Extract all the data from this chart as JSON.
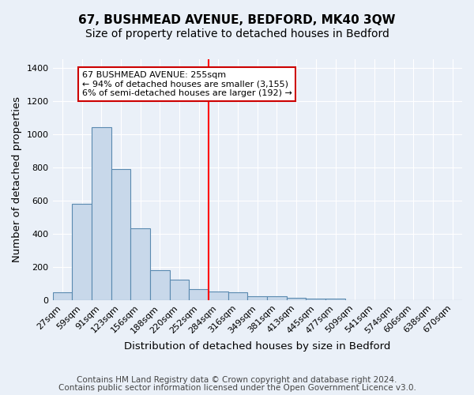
{
  "title": "67, BUSHMEAD AVENUE, BEDFORD, MK40 3QW",
  "subtitle": "Size of property relative to detached houses in Bedford",
  "xlabel": "Distribution of detached houses by size in Bedford",
  "ylabel": "Number of detached properties",
  "footer_line1": "Contains HM Land Registry data © Crown copyright and database right 2024.",
  "footer_line2": "Contains public sector information licensed under the Open Government Licence v3.0.",
  "categories": [
    "27sqm",
    "59sqm",
    "91sqm",
    "123sqm",
    "156sqm",
    "188sqm",
    "220sqm",
    "252sqm",
    "284sqm",
    "316sqm",
    "349sqm",
    "381sqm",
    "413sqm",
    "445sqm",
    "477sqm",
    "509sqm",
    "541sqm",
    "574sqm",
    "606sqm",
    "638sqm",
    "670sqm"
  ],
  "values": [
    45,
    580,
    1040,
    790,
    430,
    180,
    125,
    65,
    50,
    45,
    25,
    25,
    15,
    10,
    10,
    0,
    0,
    0,
    0,
    0,
    0
  ],
  "bar_color": "#c8d8ea",
  "bar_edge_color": "#5a8ab0",
  "red_line_index": 7,
  "annotation_text_line1": "67 BUSHMEAD AVENUE: 255sqm",
  "annotation_text_line2": "← 94% of detached houses are smaller (3,155)",
  "annotation_text_line3": "6% of semi-detached houses are larger (192) →",
  "annotation_box_color": "#ffffff",
  "annotation_box_edge": "#cc0000",
  "ylim": [
    0,
    1450
  ],
  "yticks": [
    0,
    200,
    400,
    600,
    800,
    1000,
    1200,
    1400
  ],
  "background_color": "#eaf0f8",
  "grid_color": "#ffffff",
  "title_fontsize": 11,
  "subtitle_fontsize": 10,
  "axis_label_fontsize": 9.5,
  "tick_fontsize": 8,
  "footer_fontsize": 7.5
}
